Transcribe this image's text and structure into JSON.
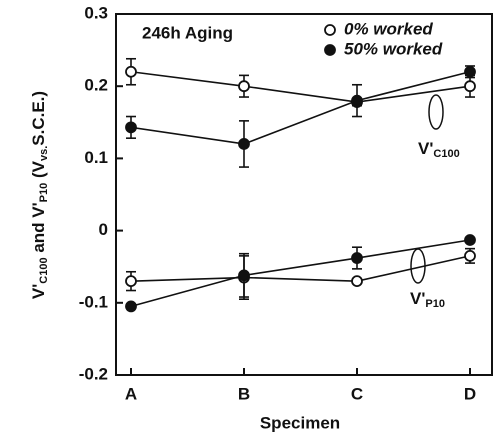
{
  "chart_data": {
    "type": "line",
    "categories": [
      "A",
      "B",
      "C",
      "D"
    ],
    "xlabel": "Specimen",
    "ylabel": [
      "V'",
      "C100",
      " and V'",
      "P10",
      " (V",
      "vs.",
      "S.C.E.)"
    ],
    "annotation": "246h Aging",
    "ylim": [
      -0.2,
      0.3
    ],
    "yticks": [
      -0.2,
      -0.1,
      0,
      0.1,
      0.2,
      0.3
    ],
    "color": "#111111",
    "legend": [
      {
        "name": "0% worked",
        "marker": "open"
      },
      {
        "name": "50% worked",
        "marker": "filled"
      }
    ],
    "groups": [
      {
        "label": {
          "main": "V'",
          "sub": "C100"
        },
        "series": [
          {
            "marker": "open",
            "values": [
              0.22,
              0.2,
              0.178,
              0.2
            ],
            "errors": [
              0.018,
              0.015,
              0.005,
              0.015
            ]
          },
          {
            "marker": "filled",
            "values": [
              0.143,
              0.12,
              0.18,
              0.22
            ],
            "errors": [
              0.015,
              0.032,
              0.022,
              0.008
            ]
          }
        ]
      },
      {
        "label": {
          "main": "V'",
          "sub": "P10"
        },
        "series": [
          {
            "marker": "open",
            "values": [
              -0.07,
              -0.065,
              -0.07,
              -0.035
            ],
            "errors": [
              0.013,
              0.03,
              0.003,
              0.01
            ]
          },
          {
            "marker": "filled",
            "values": [
              -0.105,
              -0.062,
              -0.038,
              -0.013
            ],
            "errors": [
              0.003,
              0.03,
              0.015,
              0.003
            ]
          }
        ]
      }
    ]
  }
}
